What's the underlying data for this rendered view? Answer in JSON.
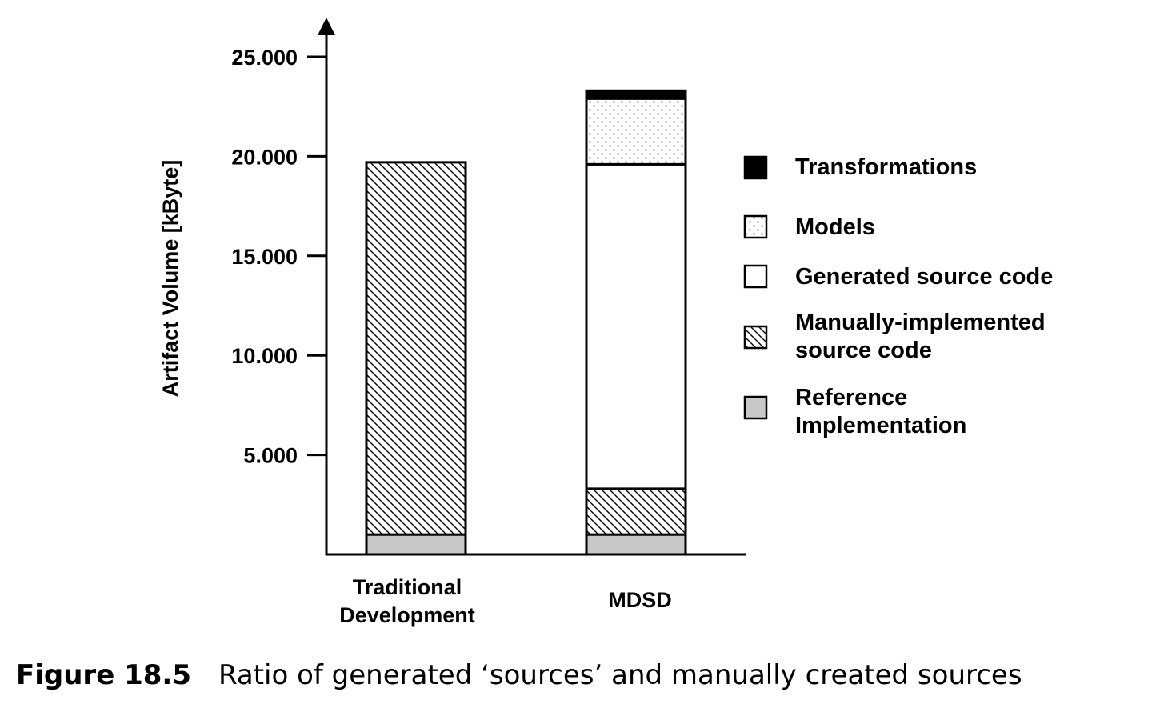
{
  "chart_data": {
    "type": "bar",
    "stacked": true,
    "categories": [
      "Traditional\nDevelopment",
      "MDSD"
    ],
    "ylabel": "Artifact Volume [kByte]",
    "xlabel": "",
    "ylim": [
      0,
      25000
    ],
    "yticks": [
      5000,
      10000,
      15000,
      20000,
      25000
    ],
    "ytick_labels": [
      "5.000",
      "10.000",
      "15.000",
      "20.000",
      "25.000"
    ],
    "grid": false,
    "legend_position": "right",
    "series": [
      {
        "name": "Reference Implementation",
        "values": [
          1000,
          1000
        ],
        "fill": "#c8c8c8",
        "pattern": "solid"
      },
      {
        "name": "Manually-implemented source code",
        "values": [
          18700,
          2300
        ],
        "fill": "#ffffff",
        "pattern": "hatch"
      },
      {
        "name": "Generated source code",
        "values": [
          0,
          16300
        ],
        "fill": "#ffffff",
        "pattern": "none"
      },
      {
        "name": "Models",
        "values": [
          0,
          3300
        ],
        "fill": "#ffffff",
        "pattern": "dots"
      },
      {
        "name": "Transformations",
        "values": [
          0,
          400
        ],
        "fill": "#000000",
        "pattern": "solid"
      }
    ],
    "legend_order": [
      "Transformations",
      "Models",
      "Generated source code",
      "Manually-implemented\nsource code",
      "Reference\nImplementation"
    ]
  },
  "caption": {
    "number": "Figure 18.5",
    "text": "Ratio of generated ‘sources’ and manually created sources"
  }
}
